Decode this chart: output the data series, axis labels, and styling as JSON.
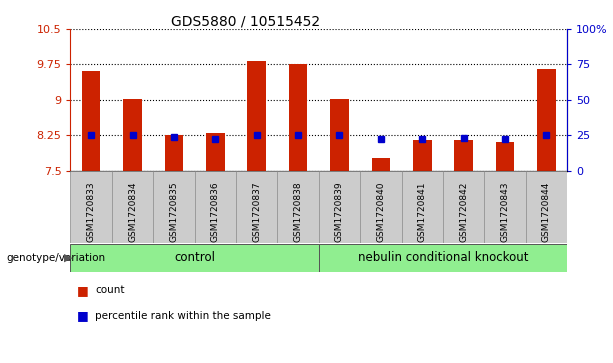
{
  "title": "GDS5880 / 10515452",
  "samples": [
    "GSM1720833",
    "GSM1720834",
    "GSM1720835",
    "GSM1720836",
    "GSM1720837",
    "GSM1720838",
    "GSM1720839",
    "GSM1720840",
    "GSM1720841",
    "GSM1720842",
    "GSM1720843",
    "GSM1720844"
  ],
  "count_values": [
    9.62,
    9.01,
    8.25,
    8.3,
    9.83,
    9.76,
    9.01,
    7.77,
    8.15,
    8.15,
    8.1,
    9.65
  ],
  "percentile_values": [
    8.25,
    8.25,
    8.22,
    8.18,
    8.25,
    8.25,
    8.25,
    8.18,
    8.18,
    8.2,
    8.18,
    8.25
  ],
  "y_min": 7.5,
  "y_max": 10.5,
  "y_ticks": [
    7.5,
    8.25,
    9.0,
    9.75,
    10.5
  ],
  "y_tick_labels": [
    "7.5",
    "8.25",
    "9",
    "9.75",
    "10.5"
  ],
  "right_y_ticks": [
    0,
    25,
    50,
    75,
    100
  ],
  "right_y_tick_labels": [
    "0",
    "25",
    "50",
    "75",
    "100%"
  ],
  "control_indices": [
    0,
    1,
    2,
    3,
    4,
    5
  ],
  "ko_indices": [
    6,
    7,
    8,
    9,
    10,
    11
  ],
  "control_label": "control",
  "ko_label": "nebulin conditional knockout",
  "group_header": "genotype/variation",
  "group_color": "#90EE90",
  "bar_color": "#CC2200",
  "percentile_color": "#0000CC",
  "bar_width": 0.45,
  "percentile_marker_size": 4,
  "grid_linestyle": ":",
  "grid_color": "#000000",
  "tick_label_color_left": "#CC2200",
  "tick_label_color_right": "#0000CC",
  "background_color": "#FFFFFF",
  "sample_bg_color": "#CCCCCC"
}
